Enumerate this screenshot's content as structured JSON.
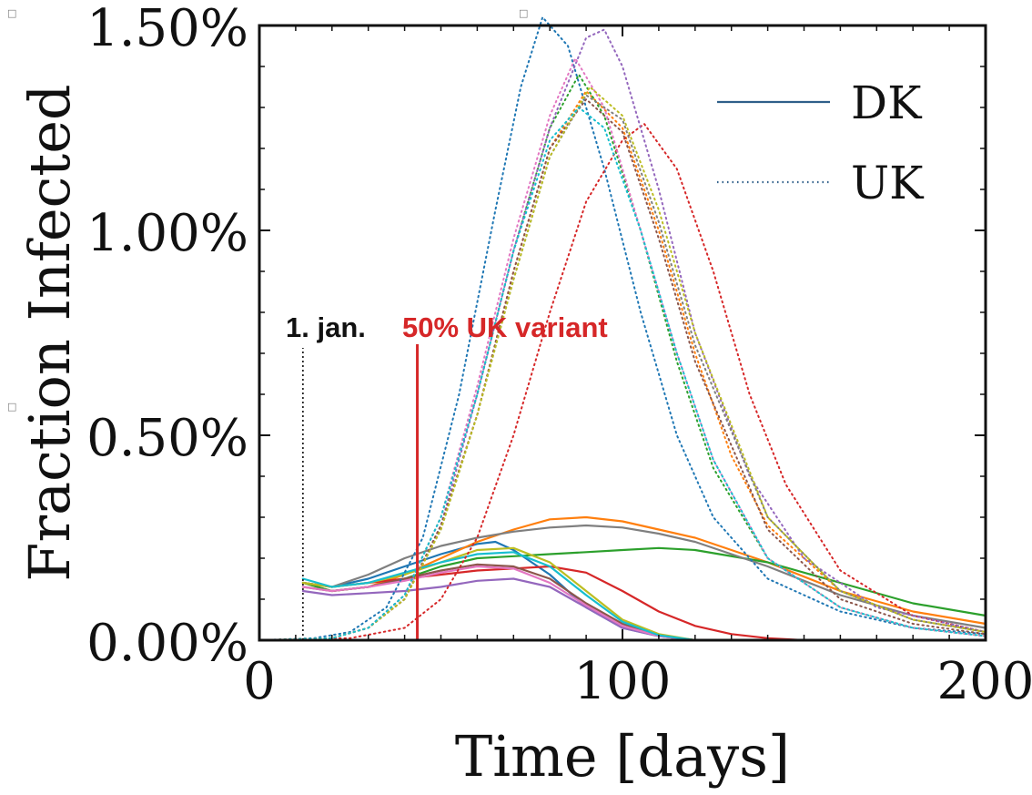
{
  "chart_data": {
    "type": "line",
    "xlabel": "Time [days]",
    "ylabel": "Fraction Infected",
    "xlim": [
      0,
      200
    ],
    "ylim": [
      0,
      1.5
    ],
    "xticks": [
      0,
      100,
      200
    ],
    "xtick_labels": [
      "0",
      "100",
      "200"
    ],
    "yticks": [
      0,
      0.5,
      1.0,
      1.5
    ],
    "ytick_labels": [
      "0.00%",
      "0.50%",
      "1.00%",
      "1.50%"
    ],
    "grid": false,
    "legend": {
      "placement": "top-right",
      "entries": [
        {
          "label": "DK",
          "style": "solid",
          "color": "#2f5f8a"
        },
        {
          "label": "UK",
          "style": "dotted",
          "color": "#2f5f8a"
        }
      ]
    },
    "annotations": [
      {
        "text": "1. jan.",
        "x": 12,
        "color": "#111111",
        "line_style": "dotted"
      },
      {
        "text": "50% UK variant",
        "x": 43.5,
        "color": "#d62728",
        "line_style": "solid"
      }
    ],
    "series": [
      {
        "group": "DK",
        "color": "#1f77b4",
        "x": [
          12,
          20,
          30,
          40,
          50,
          60,
          65,
          70,
          80,
          90,
          100,
          110,
          120,
          140
        ],
        "y": [
          0.14,
          0.13,
          0.15,
          0.18,
          0.21,
          0.235,
          0.24,
          0.22,
          0.16,
          0.08,
          0.03,
          0.01,
          0.0,
          0.0
        ]
      },
      {
        "group": "DK",
        "color": "#ff7f0e",
        "x": [
          12,
          20,
          30,
          40,
          50,
          60,
          70,
          80,
          90,
          100,
          110,
          120,
          140,
          160,
          180,
          200
        ],
        "y": [
          0.14,
          0.12,
          0.13,
          0.16,
          0.2,
          0.24,
          0.27,
          0.295,
          0.3,
          0.29,
          0.27,
          0.25,
          0.19,
          0.12,
          0.07,
          0.04
        ]
      },
      {
        "group": "DK",
        "color": "#2ca02c",
        "x": [
          12,
          20,
          30,
          40,
          50,
          60,
          70,
          80,
          90,
          100,
          110,
          120,
          140,
          160,
          180,
          200
        ],
        "y": [
          0.14,
          0.12,
          0.13,
          0.15,
          0.18,
          0.2,
          0.205,
          0.21,
          0.215,
          0.22,
          0.225,
          0.22,
          0.19,
          0.14,
          0.09,
          0.06
        ]
      },
      {
        "group": "DK",
        "color": "#d62728",
        "x": [
          12,
          20,
          30,
          40,
          50,
          60,
          70,
          80,
          90,
          100,
          110,
          120,
          130,
          140,
          150
        ],
        "y": [
          0.14,
          0.13,
          0.14,
          0.15,
          0.16,
          0.17,
          0.175,
          0.18,
          0.165,
          0.12,
          0.07,
          0.035,
          0.015,
          0.005,
          0.0
        ]
      },
      {
        "group": "DK",
        "color": "#9467bd",
        "x": [
          12,
          20,
          30,
          40,
          50,
          60,
          70,
          80,
          90,
          100,
          110,
          120
        ],
        "y": [
          0.12,
          0.11,
          0.115,
          0.12,
          0.13,
          0.145,
          0.15,
          0.13,
          0.08,
          0.03,
          0.01,
          0.0
        ]
      },
      {
        "group": "DK",
        "color": "#8c564b",
        "x": [
          12,
          20,
          30,
          40,
          50,
          60,
          70,
          80,
          90,
          100,
          110,
          120
        ],
        "y": [
          0.13,
          0.12,
          0.13,
          0.15,
          0.17,
          0.185,
          0.18,
          0.15,
          0.09,
          0.04,
          0.012,
          0.0
        ]
      },
      {
        "group": "DK",
        "color": "#e377c2",
        "x": [
          12,
          20,
          30,
          40,
          50,
          60,
          70,
          80,
          90,
          100,
          110,
          120
        ],
        "y": [
          0.13,
          0.12,
          0.13,
          0.145,
          0.165,
          0.18,
          0.175,
          0.14,
          0.085,
          0.035,
          0.01,
          0.0
        ]
      },
      {
        "group": "DK",
        "color": "#7f7f7f",
        "x": [
          12,
          20,
          30,
          40,
          50,
          60,
          70,
          80,
          90,
          100,
          110,
          120,
          140,
          160,
          180,
          200
        ],
        "y": [
          0.14,
          0.13,
          0.16,
          0.2,
          0.23,
          0.25,
          0.265,
          0.275,
          0.28,
          0.275,
          0.26,
          0.24,
          0.18,
          0.11,
          0.06,
          0.03
        ]
      },
      {
        "group": "DK",
        "color": "#bcbd22",
        "x": [
          12,
          20,
          30,
          40,
          50,
          60,
          70,
          80,
          90,
          100,
          110,
          120
        ],
        "y": [
          0.14,
          0.13,
          0.14,
          0.16,
          0.19,
          0.22,
          0.225,
          0.19,
          0.12,
          0.05,
          0.015,
          0.0
        ]
      },
      {
        "group": "DK",
        "color": "#17becf",
        "x": [
          12,
          20,
          30,
          40,
          50,
          60,
          70,
          80,
          90,
          100,
          110,
          120
        ],
        "y": [
          0.15,
          0.13,
          0.14,
          0.165,
          0.19,
          0.21,
          0.215,
          0.18,
          0.11,
          0.045,
          0.012,
          0.0
        ]
      },
      {
        "group": "UK",
        "color": "#1f77b4",
        "x": [
          0,
          15,
          25,
          35,
          45,
          55,
          65,
          72,
          78,
          85,
          95,
          105,
          115,
          125,
          140,
          160,
          180,
          200
        ],
        "y": [
          0.0,
          0.005,
          0.02,
          0.08,
          0.25,
          0.6,
          1.05,
          1.35,
          1.52,
          1.45,
          1.15,
          0.8,
          0.5,
          0.3,
          0.15,
          0.07,
          0.03,
          0.015
        ]
      },
      {
        "group": "UK",
        "color": "#ff7f0e",
        "x": [
          0,
          20,
          30,
          40,
          50,
          60,
          70,
          80,
          90,
          100,
          110,
          120,
          130,
          140,
          160,
          180,
          200
        ],
        "y": [
          0.0,
          0.005,
          0.03,
          0.1,
          0.28,
          0.55,
          0.9,
          1.2,
          1.34,
          1.25,
          1.0,
          0.7,
          0.45,
          0.28,
          0.12,
          0.05,
          0.02
        ]
      },
      {
        "group": "UK",
        "color": "#2ca02c",
        "x": [
          0,
          20,
          30,
          40,
          50,
          60,
          70,
          80,
          88,
          95,
          105,
          115,
          125,
          140,
          160,
          180,
          200
        ],
        "y": [
          0.0,
          0.005,
          0.03,
          0.11,
          0.3,
          0.6,
          0.95,
          1.25,
          1.38,
          1.28,
          1.0,
          0.68,
          0.42,
          0.2,
          0.08,
          0.03,
          0.01
        ]
      },
      {
        "group": "UK",
        "color": "#d62728",
        "x": [
          0,
          25,
          40,
          50,
          60,
          70,
          80,
          90,
          100,
          106,
          115,
          125,
          135,
          145,
          160,
          180,
          200
        ],
        "y": [
          0.0,
          0.005,
          0.03,
          0.1,
          0.25,
          0.5,
          0.8,
          1.07,
          1.22,
          1.26,
          1.15,
          0.9,
          0.6,
          0.38,
          0.17,
          0.06,
          0.02
        ]
      },
      {
        "group": "UK",
        "color": "#9467bd",
        "x": [
          0,
          20,
          30,
          40,
          50,
          60,
          70,
          80,
          90,
          95,
          100,
          110,
          120,
          135,
          150,
          170,
          200
        ],
        "y": [
          0.0,
          0.005,
          0.03,
          0.1,
          0.28,
          0.6,
          0.95,
          1.25,
          1.47,
          1.49,
          1.4,
          1.1,
          0.75,
          0.4,
          0.2,
          0.08,
          0.02
        ]
      },
      {
        "group": "UK",
        "color": "#8c564b",
        "x": [
          0,
          20,
          30,
          40,
          50,
          60,
          70,
          80,
          90,
          100,
          110,
          120,
          140,
          160,
          180,
          200
        ],
        "y": [
          0.0,
          0.005,
          0.03,
          0.1,
          0.28,
          0.55,
          0.9,
          1.2,
          1.32,
          1.24,
          0.98,
          0.68,
          0.27,
          0.1,
          0.04,
          0.015
        ]
      },
      {
        "group": "UK",
        "color": "#e377c2",
        "x": [
          0,
          20,
          30,
          40,
          50,
          60,
          70,
          80,
          87,
          95,
          105,
          115,
          125,
          140,
          160,
          180,
          200
        ],
        "y": [
          0.0,
          0.005,
          0.03,
          0.11,
          0.3,
          0.62,
          0.98,
          1.28,
          1.42,
          1.3,
          1.0,
          0.7,
          0.44,
          0.2,
          0.08,
          0.03,
          0.01
        ]
      },
      {
        "group": "UK",
        "color": "#7f7f7f",
        "x": [
          0,
          20,
          30,
          40,
          50,
          60,
          70,
          80,
          90,
          100,
          110,
          120,
          140,
          160,
          180,
          200
        ],
        "y": [
          0.0,
          0.005,
          0.03,
          0.1,
          0.27,
          0.55,
          0.88,
          1.18,
          1.33,
          1.27,
          1.02,
          0.72,
          0.3,
          0.12,
          0.05,
          0.02
        ]
      },
      {
        "group": "UK",
        "color": "#bcbd22",
        "x": [
          0,
          20,
          30,
          40,
          50,
          60,
          70,
          80,
          91,
          100,
          110,
          120,
          140,
          160,
          180,
          200
        ],
        "y": [
          0.0,
          0.005,
          0.03,
          0.1,
          0.27,
          0.55,
          0.88,
          1.18,
          1.35,
          1.28,
          1.05,
          0.75,
          0.3,
          0.12,
          0.05,
          0.02
        ]
      },
      {
        "group": "UK",
        "color": "#17becf",
        "x": [
          0,
          20,
          30,
          40,
          50,
          60,
          70,
          80,
          88,
          95,
          105,
          115,
          125,
          140,
          160,
          180,
          200
        ],
        "y": [
          0.0,
          0.005,
          0.03,
          0.11,
          0.3,
          0.6,
          0.95,
          1.22,
          1.3,
          1.25,
          1.0,
          0.7,
          0.44,
          0.2,
          0.08,
          0.03,
          0.01
        ]
      }
    ]
  },
  "page_markers": [
    "□",
    "□",
    "□"
  ]
}
